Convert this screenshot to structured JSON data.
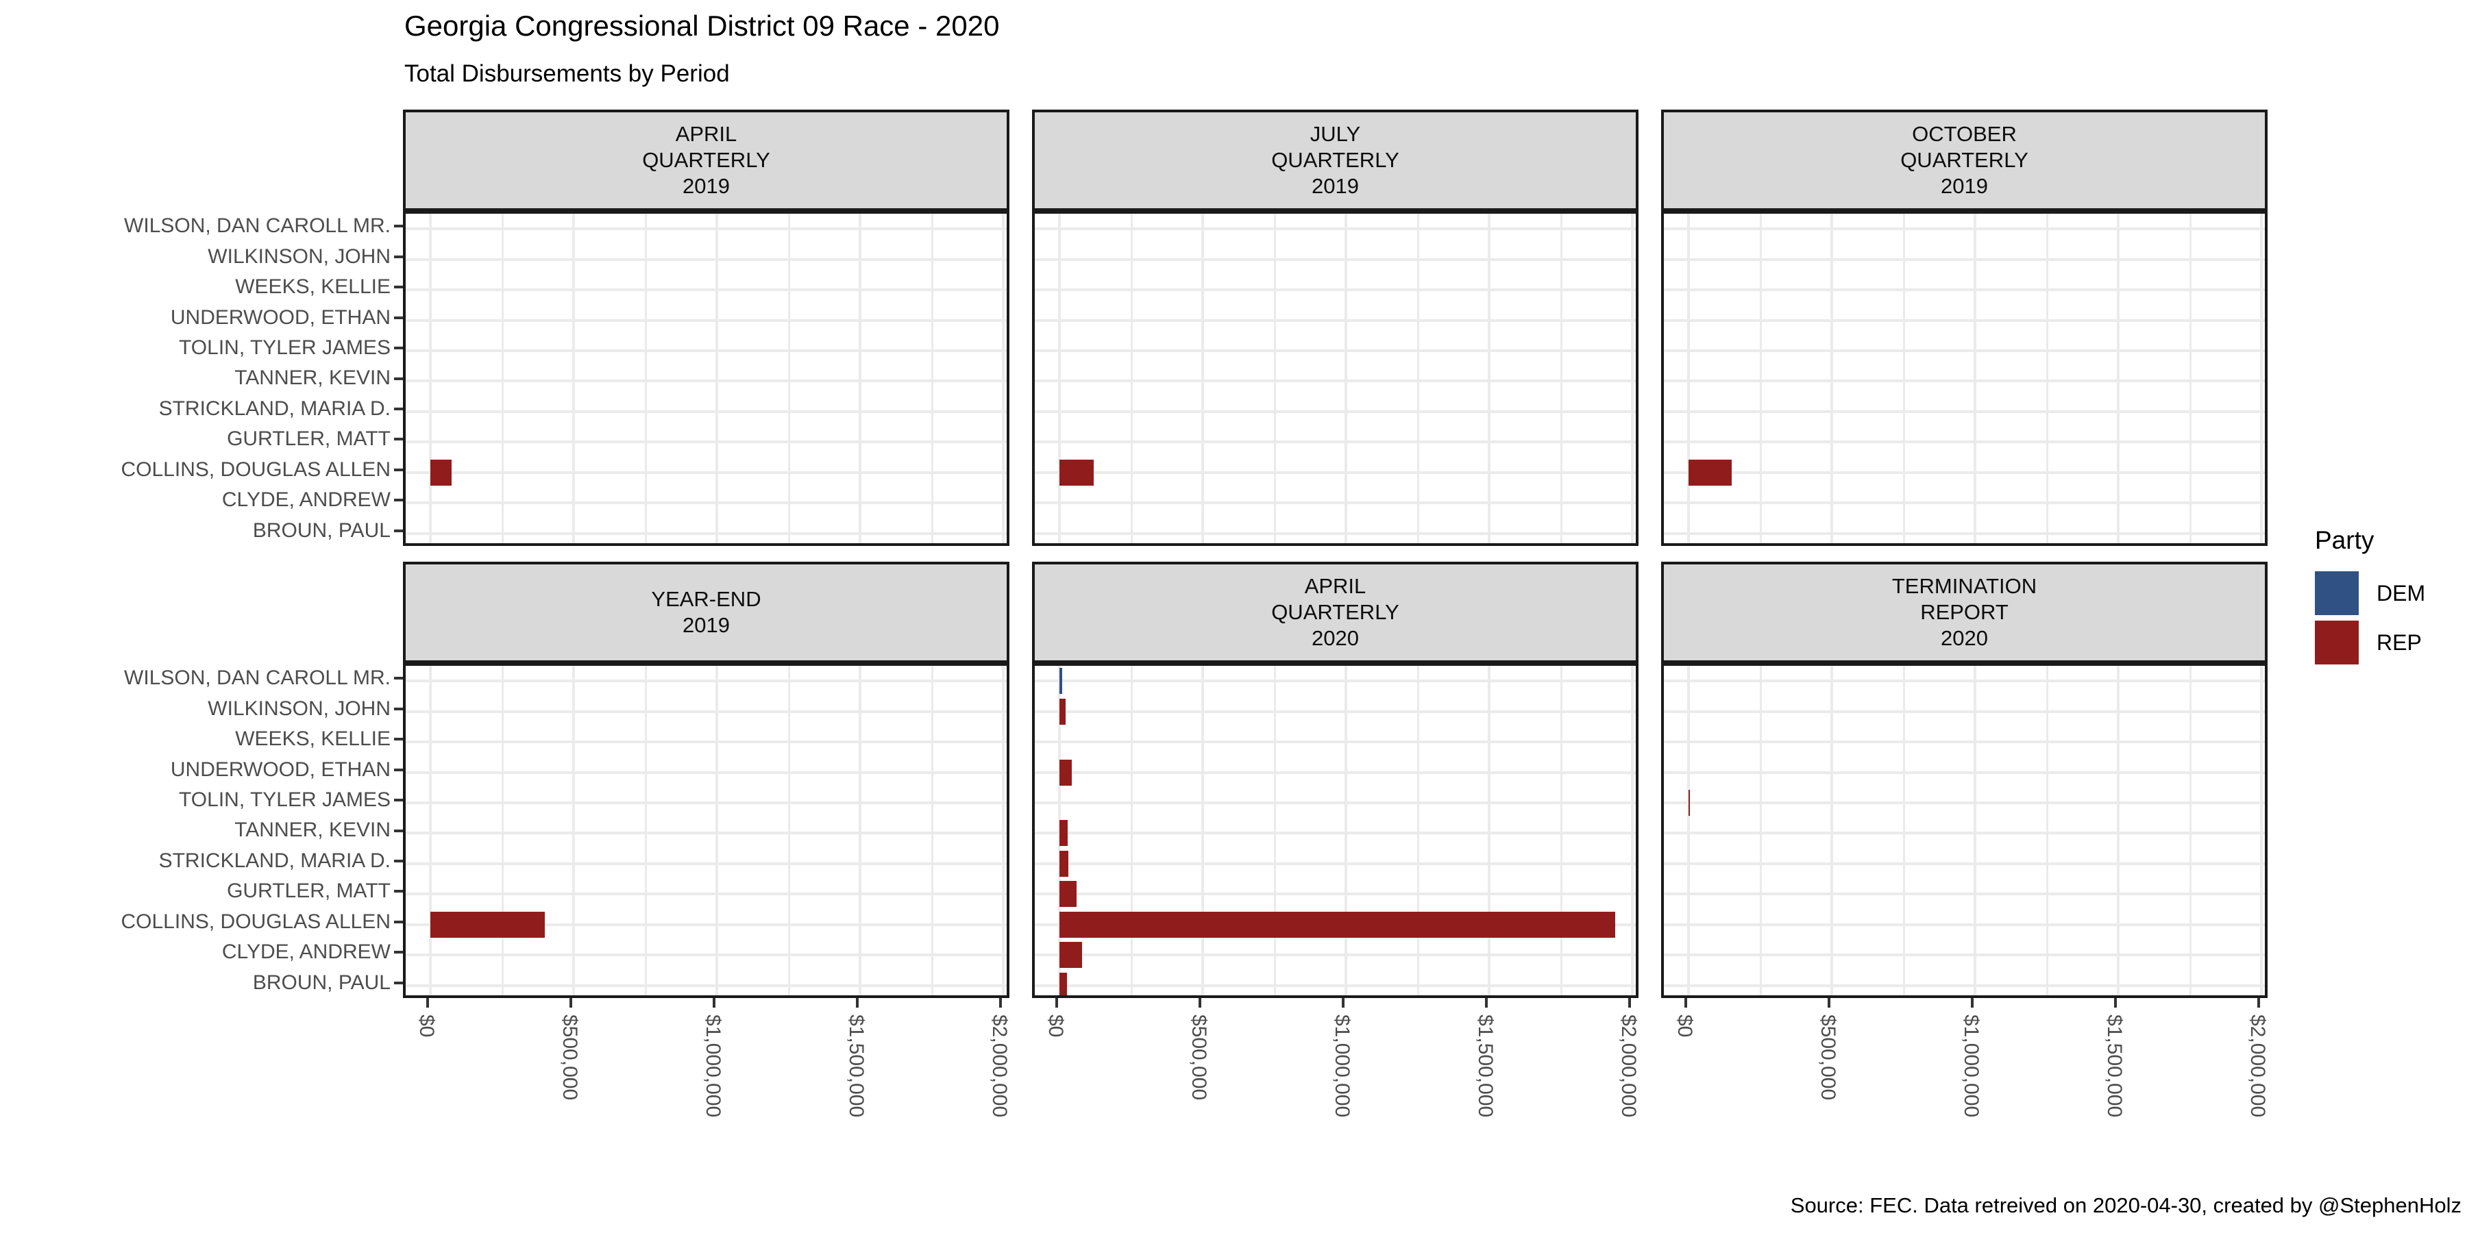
{
  "title": "Georgia Congressional District 09 Race - 2020",
  "subtitle": "Total Disbursements by Period",
  "caption": "Source: FEC. Data retreived on 2020-04-30, created by @StephenHolz",
  "legend": {
    "title": "Party",
    "entries": [
      {
        "label": "DEM",
        "color": "#2F5183"
      },
      {
        "label": "REP",
        "color": "#911C1C"
      }
    ]
  },
  "palette": {
    "DEM": "#2F5183",
    "REP": "#911C1C",
    "gridline": "#EBEBEB",
    "strip_background": "#D9D9D9",
    "panel_border": "#1A1A1A",
    "axis_text": "#4D4D4D",
    "tick": "#333333"
  },
  "chart_data": {
    "type": "bar",
    "orientation": "horizontal",
    "title": "Georgia Congressional District 09 Race - 2020",
    "subtitle": "Total Disbursements by Period",
    "legend_position": "right",
    "grid": "on",
    "categories": [
      "WILSON, DAN CAROLL MR.",
      "WILKINSON, JOHN",
      "WEEKS, KELLIE",
      "UNDERWOOD, ETHAN",
      "TOLIN, TYLER JAMES",
      "TANNER, KEVIN",
      "STRICKLAND, MARIA D.",
      "GURTLER, MATT",
      "COLLINS, DOUGLAS ALLEN",
      "CLYDE, ANDREW",
      "BROUN, PAUL"
    ],
    "x_ticks": {
      "labels": [
        "$0",
        "$500,000",
        "$1,000,000",
        "$1,500,000",
        "$2,000,000"
      ],
      "values": [
        0,
        500000,
        1000000,
        1500000,
        2000000
      ]
    },
    "xlim": [
      0,
      2000000
    ],
    "facets": [
      {
        "label_lines": [
          "APRIL",
          "QUARTERLY",
          "2019"
        ],
        "bars": [
          {
            "candidate": "COLLINS, DOUGLAS ALLEN",
            "party": "REP",
            "value": 75000
          }
        ]
      },
      {
        "label_lines": [
          "JULY",
          "QUARTERLY",
          "2019"
        ],
        "bars": [
          {
            "candidate": "COLLINS, DOUGLAS ALLEN",
            "party": "REP",
            "value": 120000
          }
        ]
      },
      {
        "label_lines": [
          "OCTOBER",
          "QUARTERLY",
          "2019"
        ],
        "bars": [
          {
            "candidate": "COLLINS, DOUGLAS ALLEN",
            "party": "REP",
            "value": 150000
          }
        ]
      },
      {
        "label_lines": [
          "YEAR-END",
          "2019"
        ],
        "bars": [
          {
            "candidate": "COLLINS, DOUGLAS ALLEN",
            "party": "REP",
            "value": 400000
          }
        ]
      },
      {
        "label_lines": [
          "APRIL",
          "QUARTERLY",
          "2020"
        ],
        "bars": [
          {
            "candidate": "WILSON, DAN CAROLL MR.",
            "party": "DEM",
            "value": 10000
          },
          {
            "candidate": "WILKINSON, JOHN",
            "party": "REP",
            "value": 21000
          },
          {
            "candidate": "UNDERWOOD, ETHAN",
            "party": "REP",
            "value": 43000
          },
          {
            "candidate": "TANNER, KEVIN",
            "party": "REP",
            "value": 29000
          },
          {
            "candidate": "STRICKLAND, MARIA D.",
            "party": "REP",
            "value": 31000
          },
          {
            "candidate": "GURTLER, MATT",
            "party": "REP",
            "value": 60000
          },
          {
            "candidate": "COLLINS, DOUGLAS ALLEN",
            "party": "REP",
            "value": 1940000
          },
          {
            "candidate": "CLYDE, ANDREW",
            "party": "REP",
            "value": 79000
          },
          {
            "candidate": "BROUN, PAUL",
            "party": "REP",
            "value": 26000
          }
        ]
      },
      {
        "label_lines": [
          "TERMINATION",
          "REPORT",
          "2020"
        ],
        "bars": [
          {
            "candidate": "TOLIN, TYLER JAMES",
            "party": "REP",
            "value": 4000
          }
        ]
      }
    ]
  }
}
